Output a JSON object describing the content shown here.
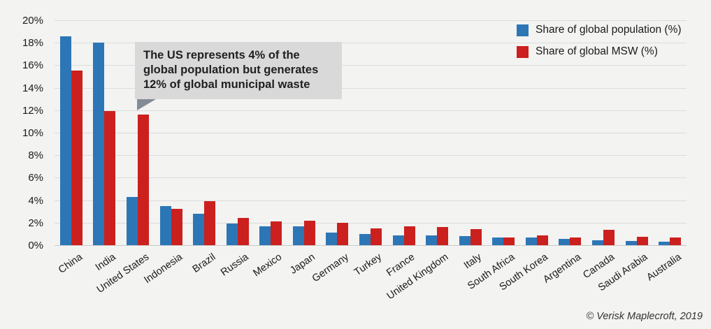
{
  "chart_data": {
    "type": "bar",
    "title": "",
    "xlabel": "",
    "ylabel": "",
    "categories": [
      "China",
      "India",
      "United States",
      "Indonesia",
      "Brazil",
      "Russia",
      "Mexico",
      "Japan",
      "Germany",
      "Turkey",
      "France",
      "United Kingdom",
      "Italy",
      "South Africa",
      "South Korea",
      "Argentina",
      "Canada",
      "Saudi Arabia",
      "Australia"
    ],
    "series": [
      {
        "name": "Share of global population (%)",
        "color": "#2d76b6",
        "values": [
          18.6,
          18.0,
          4.3,
          3.5,
          2.8,
          1.9,
          1.7,
          1.7,
          1.1,
          1.0,
          0.85,
          0.85,
          0.8,
          0.7,
          0.7,
          0.55,
          0.45,
          0.4,
          0.3
        ]
      },
      {
        "name": "Share of global MSW (%)",
        "color": "#cb201d",
        "values": [
          15.5,
          11.9,
          11.6,
          3.2,
          3.9,
          2.4,
          2.1,
          2.2,
          2.0,
          1.5,
          1.7,
          1.6,
          1.4,
          0.7,
          0.9,
          0.7,
          1.35,
          0.75,
          0.7
        ]
      }
    ],
    "ylim": [
      0,
      20
    ],
    "ytick_step": 2,
    "ytick_suffix": "%",
    "grid": true,
    "legend_position": "top-right"
  },
  "legend": {
    "population_label": "Share of global population (%)",
    "msw_label": "Share of global MSW (%)"
  },
  "annotation": {
    "lines": [
      "The US represents 4% of the",
      "global population but generates",
      "12% of global municipal waste"
    ]
  },
  "footer": {
    "copyright": "© Verisk Maplecroft, 2019"
  },
  "colors": {
    "population": "#2d76b6",
    "msw": "#cb201d",
    "annotation_bg": "#d9d9d9",
    "annotation_pointer": "#848b94",
    "background": "#f3f3f2",
    "gridline": "#dcdcdc"
  }
}
